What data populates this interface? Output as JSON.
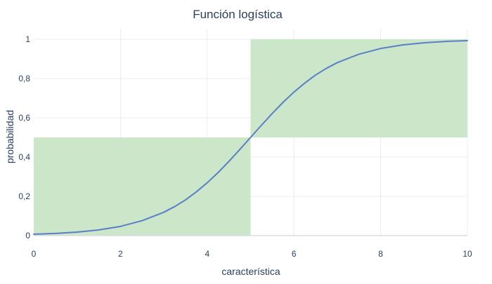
{
  "chart_data": {
    "type": "line",
    "title": "Función logística",
    "xlabel": "característica",
    "ylabel": "probabilidad",
    "xlim": [
      0,
      10
    ],
    "ylim": [
      0,
      1
    ],
    "x_ticks": [
      0,
      2,
      4,
      6,
      8,
      10
    ],
    "x_tick_labels": [
      "0",
      "2",
      "4",
      "6",
      "8",
      "10"
    ],
    "y_ticks": [
      0,
      0.2,
      0.4,
      0.6,
      0.8,
      1
    ],
    "y_tick_labels": [
      "0",
      "0,2",
      "0,4",
      "0,6",
      "0,8",
      "1"
    ],
    "grid": true,
    "legend": "none",
    "colors": {
      "line": "#5b7fc7",
      "region": "#cbe6c8",
      "grid": "#eaedf3",
      "text": "#2a3f5f",
      "axis": "#d9dde6"
    },
    "shaded_regions": [
      {
        "x0": 0,
        "x1": 5,
        "y0": 0,
        "y1": 0.5
      },
      {
        "x0": 5,
        "x1": 10,
        "y0": 0.5,
        "y1": 1
      }
    ],
    "series": [
      {
        "x": [
          0,
          0.5,
          1,
          1.5,
          2,
          2.5,
          3,
          3.25,
          3.5,
          3.75,
          4,
          4.25,
          4.5,
          4.75,
          5,
          5.25,
          5.5,
          5.75,
          6,
          6.25,
          6.5,
          6.75,
          7,
          7.5,
          8,
          8.5,
          9,
          9.5,
          10
        ],
        "y": [
          0.007,
          0.011,
          0.018,
          0.029,
          0.047,
          0.076,
          0.119,
          0.148,
          0.182,
          0.223,
          0.269,
          0.321,
          0.378,
          0.438,
          0.5,
          0.562,
          0.622,
          0.679,
          0.731,
          0.777,
          0.818,
          0.852,
          0.881,
          0.924,
          0.953,
          0.971,
          0.982,
          0.989,
          0.993
        ]
      }
    ]
  }
}
